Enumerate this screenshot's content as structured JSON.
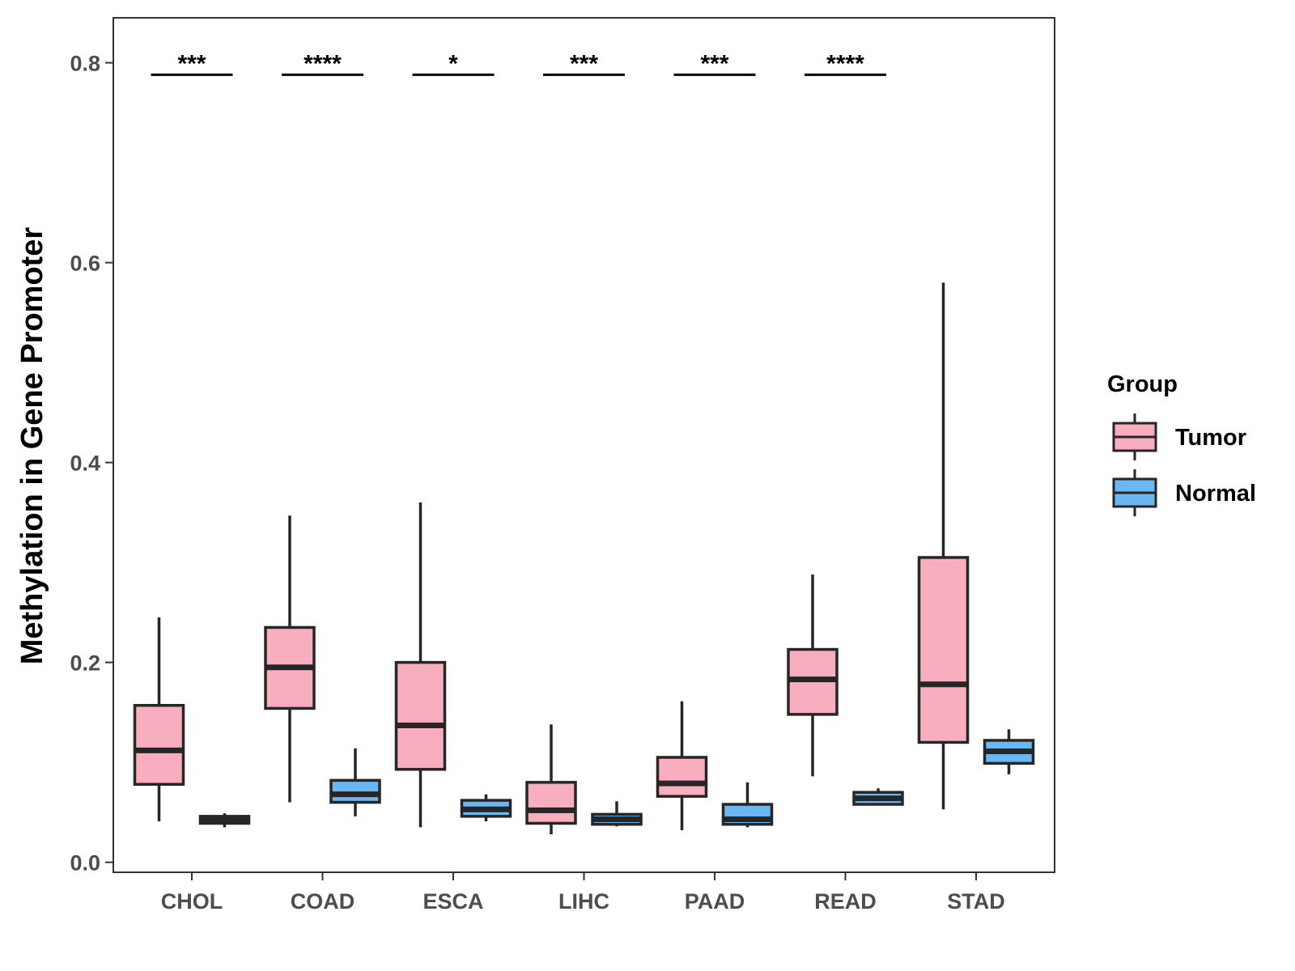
{
  "chart_data": {
    "type": "boxplot",
    "title": "",
    "xlabel": "",
    "ylabel": "Methylation in Gene Promoter",
    "ylim": [
      -0.01,
      0.845
    ],
    "yticks": [
      0.0,
      0.2,
      0.4,
      0.6,
      0.8
    ],
    "ytick_labels": [
      "0.0",
      "0.2",
      "0.4",
      "0.6",
      "0.8"
    ],
    "categories": [
      "CHOL",
      "COAD",
      "ESCA",
      "LIHC",
      "PAAD",
      "READ",
      "STAD"
    ],
    "grid": false,
    "legend": {
      "title": "Group",
      "position": "right",
      "entries": [
        {
          "name": "Tumor",
          "color": "#f9aec0"
        },
        {
          "name": "Normal",
          "color": "#6ab7f2"
        }
      ]
    },
    "series": [
      {
        "name": "Tumor",
        "color": "#f9aec0",
        "boxes": [
          {
            "category": "CHOL",
            "min": 0.041,
            "q1": 0.078,
            "median": 0.112,
            "q3": 0.157,
            "max": 0.245
          },
          {
            "category": "COAD",
            "min": 0.06,
            "q1": 0.154,
            "median": 0.195,
            "q3": 0.235,
            "max": 0.347
          },
          {
            "category": "ESCA",
            "min": 0.035,
            "q1": 0.093,
            "median": 0.137,
            "q3": 0.2,
            "max": 0.36
          },
          {
            "category": "LIHC",
            "min": 0.028,
            "q1": 0.039,
            "median": 0.052,
            "q3": 0.08,
            "max": 0.138
          },
          {
            "category": "PAAD",
            "min": 0.032,
            "q1": 0.066,
            "median": 0.079,
            "q3": 0.105,
            "max": 0.161
          },
          {
            "category": "READ",
            "min": 0.086,
            "q1": 0.148,
            "median": 0.183,
            "q3": 0.213,
            "max": 0.288
          },
          {
            "category": "STAD",
            "min": 0.053,
            "q1": 0.12,
            "median": 0.178,
            "q3": 0.305,
            "max": 0.58
          }
        ]
      },
      {
        "name": "Normal",
        "color": "#6ab7f2",
        "boxes": [
          {
            "category": "CHOL",
            "min": 0.035,
            "q1": 0.039,
            "median": 0.042,
            "q3": 0.046,
            "max": 0.049
          },
          {
            "category": "COAD",
            "min": 0.046,
            "q1": 0.06,
            "median": 0.068,
            "q3": 0.082,
            "max": 0.114
          },
          {
            "category": "ESCA",
            "min": 0.041,
            "q1": 0.046,
            "median": 0.053,
            "q3": 0.062,
            "max": 0.068
          },
          {
            "category": "LIHC",
            "min": 0.036,
            "q1": 0.038,
            "median": 0.043,
            "q3": 0.048,
            "max": 0.061
          },
          {
            "category": "PAAD",
            "min": 0.035,
            "q1": 0.038,
            "median": 0.043,
            "q3": 0.058,
            "max": 0.08
          },
          {
            "category": "READ",
            "min": 0.058,
            "q1": 0.058,
            "median": 0.064,
            "q3": 0.07,
            "max": 0.074
          },
          {
            "category": "STAD",
            "min": 0.088,
            "q1": 0.099,
            "median": 0.111,
            "q3": 0.122,
            "max": 0.133
          }
        ]
      }
    ],
    "annotations": [
      {
        "category": "CHOL",
        "label": "***",
        "y": 0.788
      },
      {
        "category": "COAD",
        "label": "****",
        "y": 0.788
      },
      {
        "category": "ESCA",
        "label": "*",
        "y": 0.788
      },
      {
        "category": "LIHC",
        "label": "***",
        "y": 0.788
      },
      {
        "category": "PAAD",
        "label": "***",
        "y": 0.788
      },
      {
        "category": "READ",
        "label": "****",
        "y": 0.788
      }
    ]
  }
}
